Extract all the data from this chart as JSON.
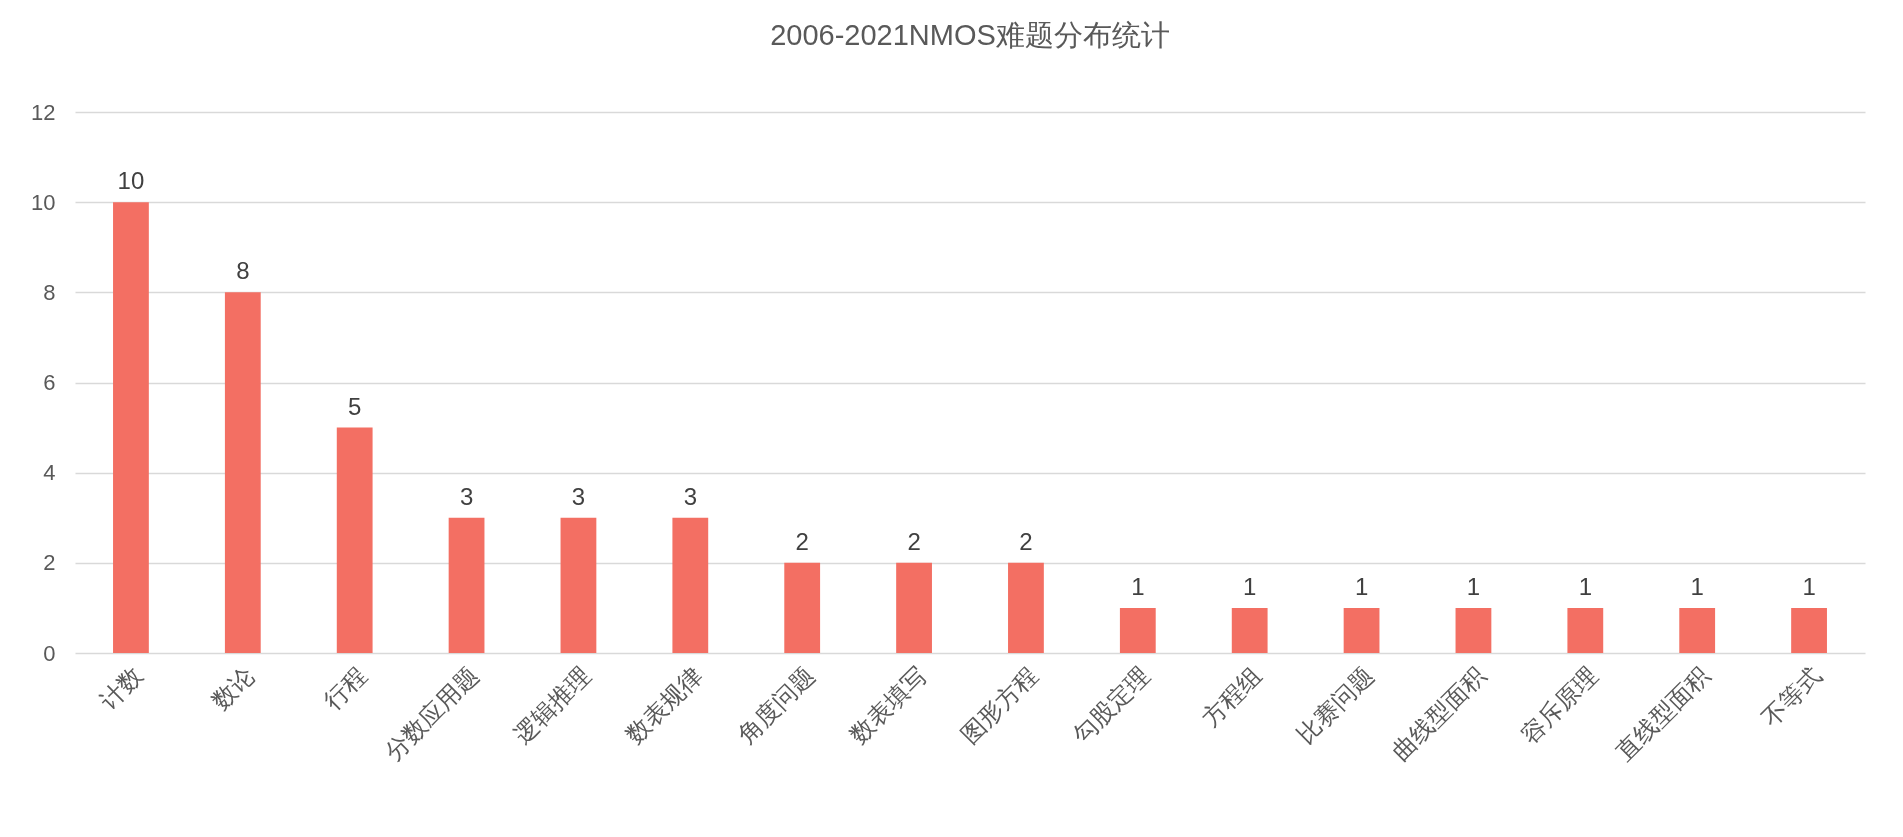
{
  "chart_data": {
    "type": "bar",
    "title": "2006-2021NMOS难题分布统计",
    "categories": [
      "计数",
      "数论",
      "行程",
      "分数应用题",
      "逻辑推理",
      "数表规律",
      "角度问题",
      "数表填写",
      "图形方程",
      "勾股定理",
      "方程组",
      "比赛问题",
      "曲线型面积",
      "容斥原理",
      "直线型面积",
      "不等式"
    ],
    "values": [
      10,
      8,
      5,
      3,
      3,
      3,
      2,
      2,
      2,
      1,
      1,
      1,
      1,
      1,
      1,
      1
    ],
    "color": "#f36f63",
    "ylim": [
      0,
      12
    ],
    "yticks": [
      0,
      2,
      4,
      6,
      8,
      10,
      12
    ],
    "grid": "y",
    "data_labels": true
  }
}
